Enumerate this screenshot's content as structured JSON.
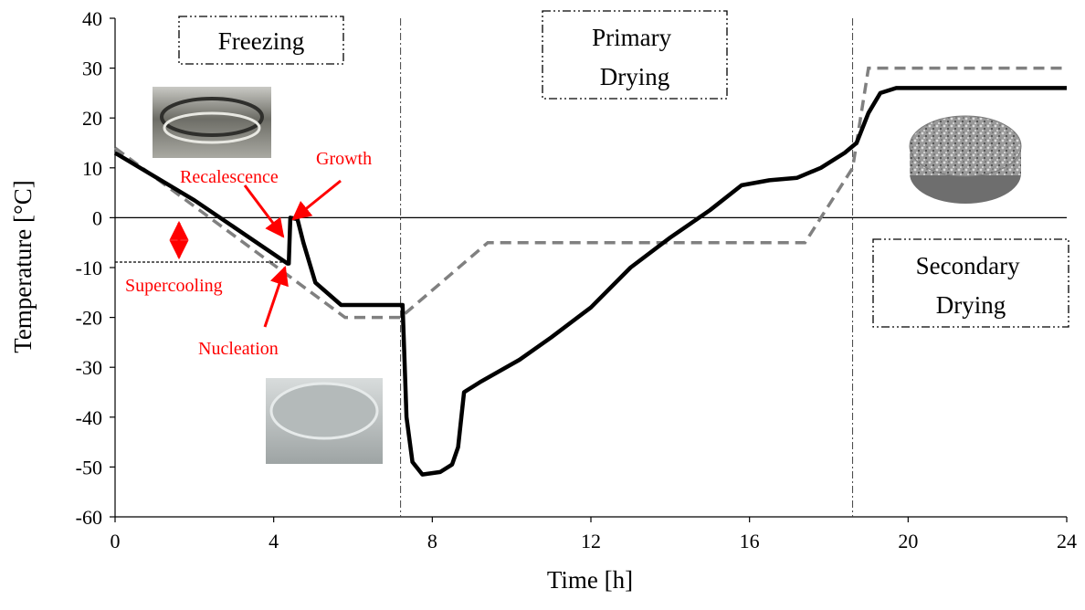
{
  "chart_data": {
    "type": "line",
    "xlabel": "Time [h]",
    "ylabel": "Temperature [°C]",
    "xlim": [
      0,
      24
    ],
    "ylim": [
      -60,
      40
    ],
    "xticks": [
      0,
      4,
      8,
      12,
      16,
      20,
      24
    ],
    "yticks": [
      -60,
      -50,
      -40,
      -30,
      -20,
      -10,
      0,
      10,
      20,
      30,
      40
    ],
    "grid": false,
    "zero_line": true,
    "phase_boundaries": [
      7.2,
      18.6
    ],
    "phases": [
      {
        "label": "Freezing",
        "x": 2.6,
        "y": 36.5
      },
      {
        "label": "Primary Drying",
        "x": 11.0,
        "y": 33.5
      },
      {
        "label": "Secondary Drying",
        "x": 21.3,
        "y": -9.0
      }
    ],
    "series": [
      {
        "style": "solid",
        "color": "#000000",
        "points": [
          [
            0,
            13
          ],
          [
            2.0,
            3.5
          ],
          [
            4.35,
            -9.2
          ],
          [
            4.38,
            -9.2
          ],
          [
            4.42,
            0
          ],
          [
            4.6,
            -0.3
          ],
          [
            4.75,
            -5
          ],
          [
            5.05,
            -13
          ],
          [
            5.7,
            -17.5
          ],
          [
            7.25,
            -17.5
          ],
          [
            7.35,
            -40
          ],
          [
            7.5,
            -49
          ],
          [
            7.75,
            -51.5
          ],
          [
            8.2,
            -51
          ],
          [
            8.5,
            -49.5
          ],
          [
            8.65,
            -46
          ],
          [
            8.8,
            -35
          ],
          [
            9.2,
            -33
          ],
          [
            10.2,
            -28.5
          ],
          [
            11.0,
            -24
          ],
          [
            12.0,
            -18
          ],
          [
            13.0,
            -10
          ],
          [
            14.0,
            -4
          ],
          [
            15.0,
            1.5
          ],
          [
            15.8,
            6.5
          ],
          [
            16.5,
            7.5
          ],
          [
            17.2,
            8
          ],
          [
            17.8,
            10
          ],
          [
            18.4,
            13
          ],
          [
            18.7,
            15
          ],
          [
            19.0,
            21
          ],
          [
            19.3,
            25
          ],
          [
            19.7,
            26
          ],
          [
            24,
            26
          ]
        ]
      },
      {
        "style": "dashed",
        "color": "#808080",
        "points": [
          [
            0,
            14
          ],
          [
            5.8,
            -20
          ],
          [
            7.2,
            -20
          ],
          [
            9.4,
            -5
          ],
          [
            17.4,
            -5
          ],
          [
            18.6,
            10
          ],
          [
            19.0,
            30
          ],
          [
            24,
            30
          ]
        ]
      }
    ],
    "annotations": [
      {
        "text": "Recalescence",
        "color": "#ff0000"
      },
      {
        "text": "Growth",
        "color": "#ff0000"
      },
      {
        "text": "Nucleation",
        "color": "#ff0000"
      },
      {
        "text": "Supercooling",
        "color": "#ff0000"
      }
    ]
  }
}
